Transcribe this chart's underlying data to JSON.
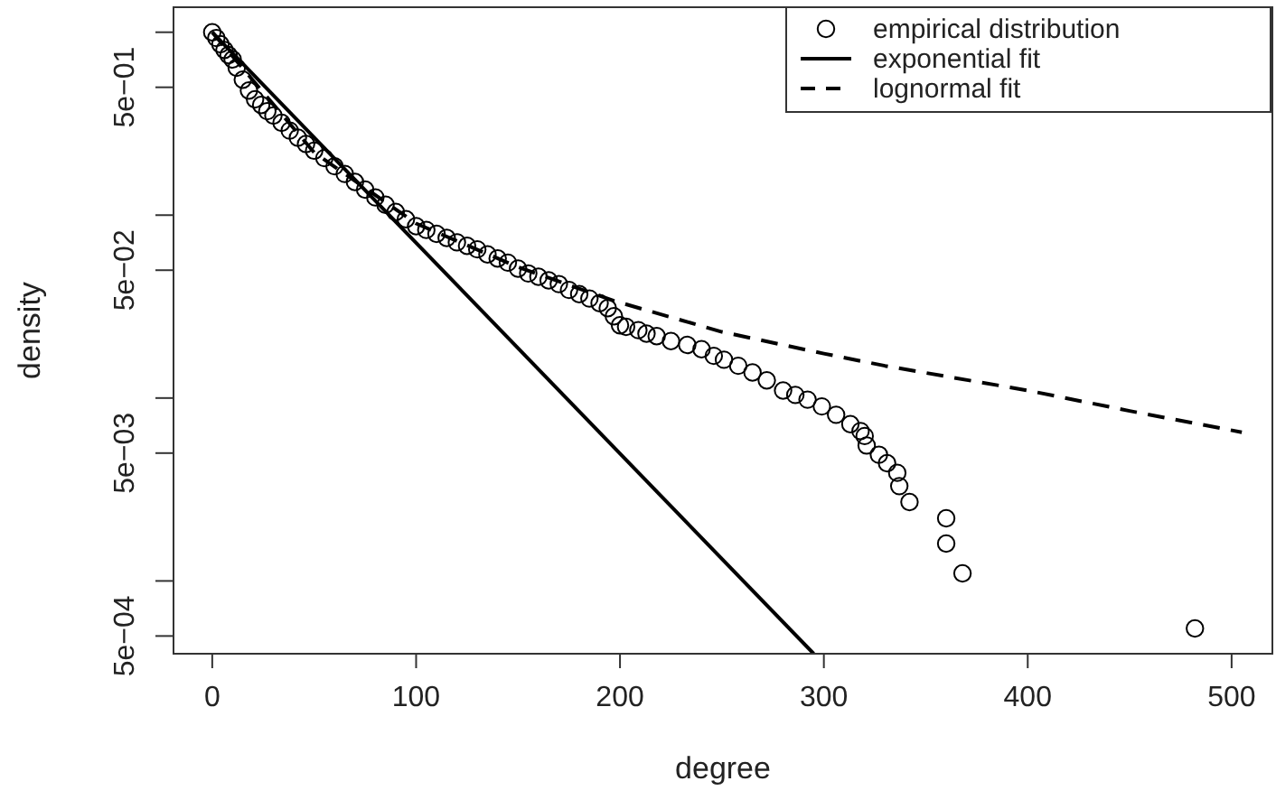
{
  "chart_data": {
    "type": "scatter",
    "xlabel": "degree",
    "ylabel": "density",
    "log": "y",
    "xlim": [
      -19,
      520
    ],
    "ylim": [
      0.0004,
      1.37
    ],
    "xticks": [
      0,
      100,
      200,
      300,
      400,
      500
    ],
    "yticks": [
      {
        "value": 1,
        "label": null
      },
      {
        "value": 0.5,
        "label": "5e−01"
      },
      {
        "value": 0.1,
        "label": null
      },
      {
        "value": 0.05,
        "label": "5e−02"
      },
      {
        "value": 0.01,
        "label": null
      },
      {
        "value": 0.005,
        "label": "5e−03"
      },
      {
        "value": 0.001,
        "label": null
      },
      {
        "value": 0.0005,
        "label": "5e−04"
      }
    ],
    "legend": "top right",
    "grid": false,
    "series": [
      {
        "name": "empirical distribution",
        "marker": "circle",
        "color": "#000000",
        "x": [
          0,
          2,
          4,
          6,
          8,
          10,
          12,
          15,
          18,
          21,
          24,
          27,
          30,
          34,
          38,
          42,
          46,
          50,
          55,
          60,
          65,
          70,
          75,
          80,
          85,
          90,
          95,
          100,
          105,
          110,
          115,
          120,
          125,
          130,
          135,
          140,
          145,
          150,
          155,
          160,
          165,
          170,
          175,
          180,
          185,
          190,
          194,
          197,
          200,
          203,
          209,
          213,
          218,
          225,
          233,
          240,
          246,
          251,
          258,
          265,
          272,
          280,
          286,
          292,
          299,
          306,
          313,
          318,
          320,
          321,
          327,
          331,
          336,
          337,
          342,
          360,
          360,
          368,
          482
        ],
        "values": [
          1,
          0.93,
          0.86,
          0.8,
          0.75,
          0.71,
          0.64,
          0.55,
          0.48,
          0.43,
          0.4,
          0.37,
          0.35,
          0.32,
          0.29,
          0.265,
          0.245,
          0.225,
          0.205,
          0.185,
          0.168,
          0.152,
          0.138,
          0.125,
          0.114,
          0.104,
          0.095,
          0.087,
          0.083,
          0.079,
          0.075,
          0.071,
          0.068,
          0.065,
          0.061,
          0.058,
          0.055,
          0.051,
          0.048,
          0.046,
          0.044,
          0.042,
          0.039,
          0.037,
          0.035,
          0.033,
          0.031,
          0.028,
          0.025,
          0.0245,
          0.0235,
          0.0225,
          0.0218,
          0.0205,
          0.0195,
          0.0185,
          0.017,
          0.0162,
          0.015,
          0.0138,
          0.0125,
          0.011,
          0.0104,
          0.0098,
          0.009,
          0.0081,
          0.0072,
          0.0066,
          0.0062,
          0.0055,
          0.0049,
          0.0044,
          0.0039,
          0.0033,
          0.0027,
          0.0022,
          0.0016,
          0.0011,
          0.00055
        ]
      },
      {
        "name": "exponential fit",
        "type": "line",
        "line_style": "solid",
        "marker": "none",
        "color": "#000000",
        "x": [
          0,
          295
        ],
        "values": [
          1,
          0.0004
        ]
      },
      {
        "name": "lognormal fit",
        "type": "line",
        "line_style": "dashed",
        "marker": "none",
        "color": "#000000",
        "x": [
          0,
          50,
          100,
          150,
          197,
          250,
          300,
          330,
          400,
          450,
          505
        ],
        "values": [
          1,
          0.22,
          0.09,
          0.052,
          0.034,
          0.023,
          0.0175,
          0.015,
          0.011,
          0.0085,
          0.0065
        ]
      }
    ]
  }
}
